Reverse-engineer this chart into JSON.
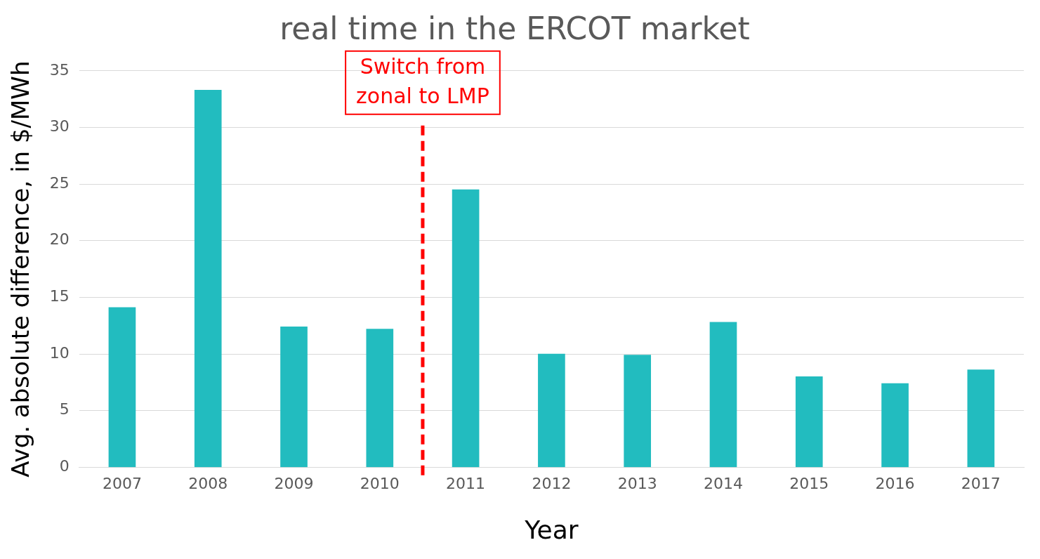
{
  "chart_data": {
    "type": "bar",
    "title": "real time in the ERCOT market",
    "xlabel": "Year",
    "ylabel": "Avg. absolute difference, in $/MWh",
    "x": [
      2007,
      2008,
      2009,
      2010,
      2011,
      2012,
      2013,
      2014,
      2015,
      2016,
      2017
    ],
    "values": [
      14.1,
      33.3,
      12.4,
      12.2,
      24.5,
      10.0,
      9.9,
      12.8,
      8.0,
      7.4,
      8.6
    ],
    "color": "#22bcbf",
    "xlim": [
      2006.5,
      2017.5
    ],
    "xticks": [
      2007,
      2008,
      2009,
      2010,
      2011,
      2012,
      2013,
      2014,
      2015,
      2016,
      2017
    ],
    "ylim": [
      0,
      35
    ],
    "yticks": [
      0,
      5,
      10,
      15,
      20,
      25,
      30,
      35
    ],
    "grid": "y",
    "legend": false,
    "ref_lines": [
      {
        "axis": "x",
        "value": 2010.5,
        "label": "Switch from\nzonal to LMP",
        "color": "#ff0000",
        "line_style": "dashed"
      }
    ]
  }
}
